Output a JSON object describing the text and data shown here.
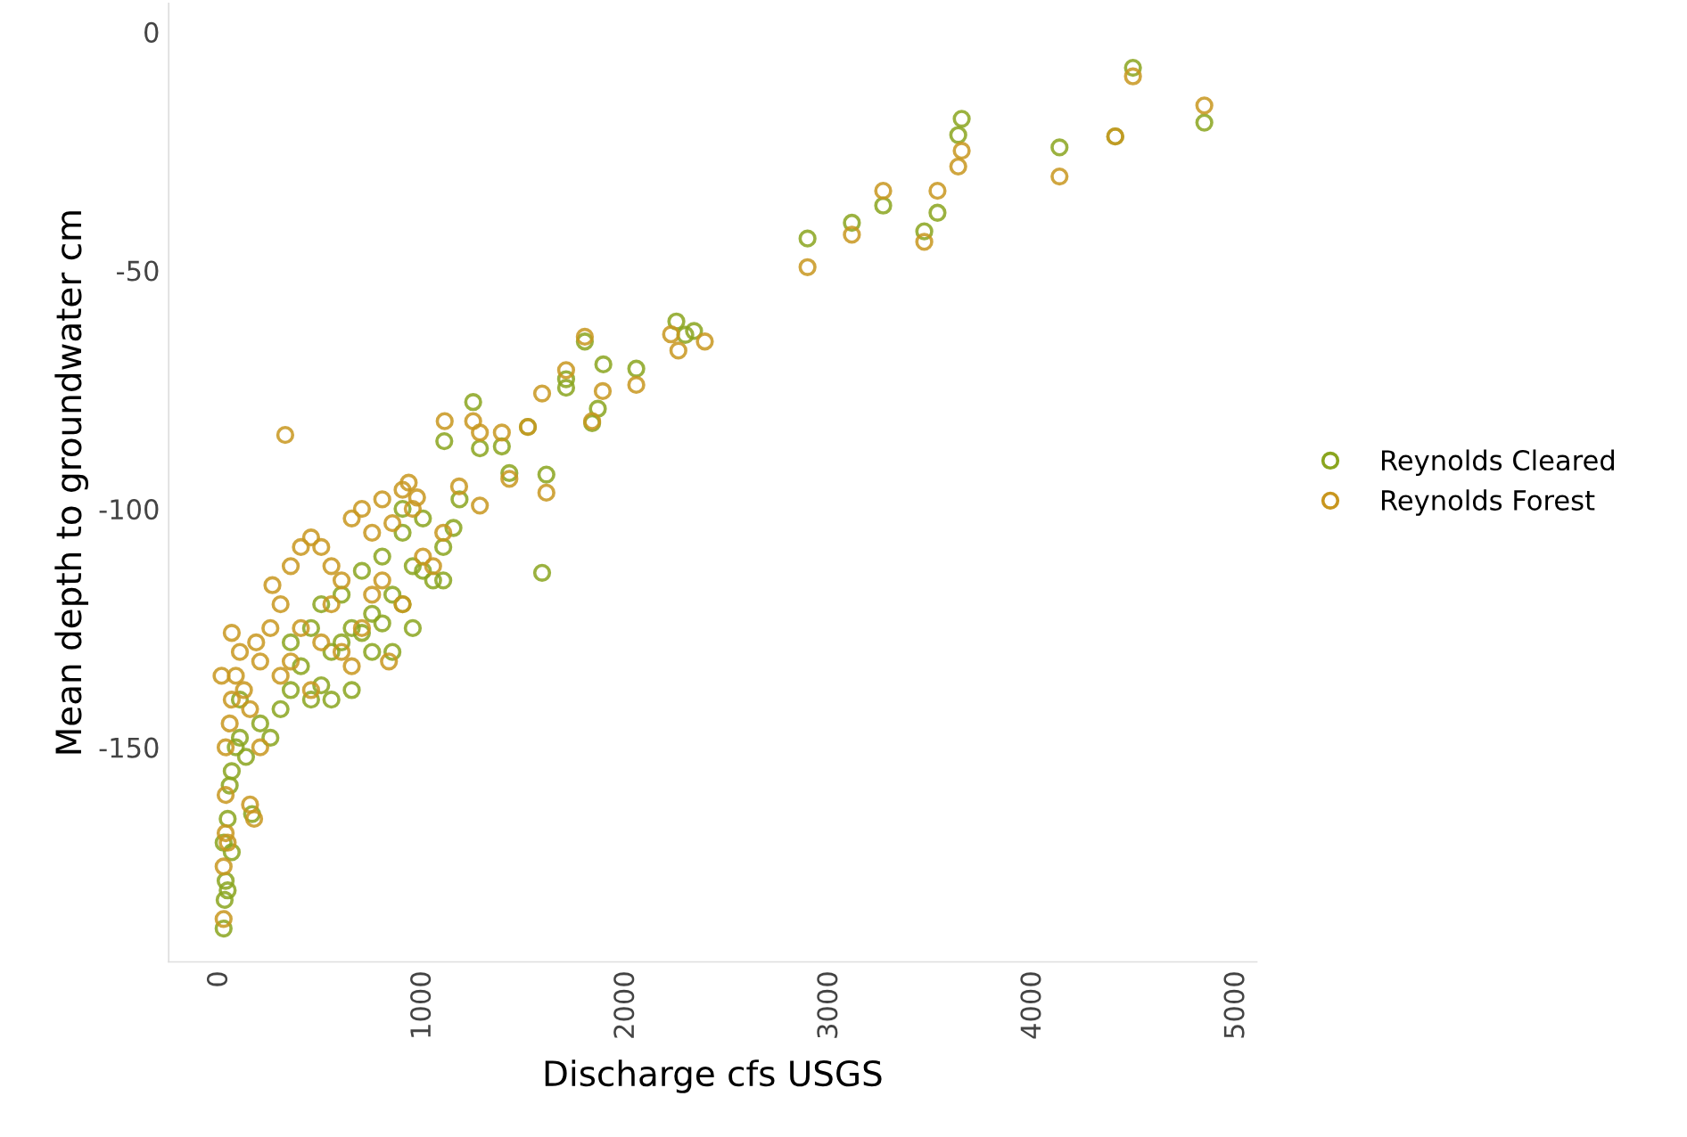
{
  "chart_data": {
    "type": "scatter",
    "xlabel": "Discharge cfs USGS",
    "ylabel": "Mean depth to groundwater cm",
    "xlim": [
      -250,
      5100
    ],
    "xticks": [
      0,
      1000,
      2000,
      3000,
      4000,
      5000
    ],
    "ylim": [
      -195,
      6
    ],
    "yticks": [
      0,
      -50,
      -100,
      -150
    ],
    "marker": "circle",
    "grid": false,
    "legend": "right",
    "series": [
      {
        "name": "Reynolds Cleared",
        "color": "#8aa51e",
        "x": [
          4491,
          4842,
          4404,
          4130,
          3649,
          3632,
          3263,
          3530,
          3465,
          3109,
          2891,
          2246,
          2333,
          2290,
          1796,
          1887,
          2049,
          1704,
          1704,
          1860,
          1832,
          1247,
          1105,
          1280,
          1388,
          1516,
          1425,
          1607,
          1586,
          20,
          25,
          30,
          20,
          40,
          50,
          60,
          80,
          100,
          130,
          160,
          250,
          300,
          350,
          400,
          450,
          500,
          550,
          600,
          650,
          700,
          750,
          800,
          850,
          900,
          950,
          1000,
          1050,
          1100,
          1150,
          500,
          600,
          700,
          800,
          900,
          450,
          350,
          550,
          650,
          750,
          850,
          950,
          1000,
          1100,
          200,
          100,
          60,
          40,
          900,
          1180
        ],
        "values": [
          -7.5,
          -19,
          -21.9,
          -24.2,
          -18.2,
          -21.6,
          -36.4,
          -37.9,
          -41.8,
          -40,
          -43.3,
          -60.7,
          -62.7,
          -63.5,
          -64.9,
          -69.7,
          -70.6,
          -72.8,
          -74.6,
          -79,
          -82,
          -77.6,
          -85.8,
          -87.3,
          -86.9,
          -82.8,
          -92.5,
          -92.8,
          -113.4,
          -188,
          -182,
          -178,
          -170,
          -165,
          -158,
          -155,
          -150,
          -148,
          -152,
          -164,
          -148,
          -142,
          -138,
          -133,
          -140,
          -137,
          -130,
          -128,
          -138,
          -126,
          -122,
          -124,
          -118,
          -120,
          -112,
          -113,
          -115,
          -108,
          -104,
          -120,
          -118,
          -113,
          -110,
          -105,
          -125,
          -128,
          -140,
          -125,
          -130,
          -130,
          -125,
          -102,
          -115,
          -145,
          -140,
          -172,
          -180,
          -100,
          -98
        ]
      },
      {
        "name": "Reynolds Forest",
        "color": "#c8961e",
        "x": [
          4491,
          4842,
          4404,
          4130,
          3649,
          3632,
          3263,
          3530,
          3465,
          3109,
          2891,
          2220,
          2386,
          2256,
          1796,
          2049,
          1704,
          1586,
          1884,
          1832,
          1107,
          1247,
          1280,
          1388,
          1516,
          323,
          1425,
          1607,
          1280,
          1178,
          930,
          971,
          20,
          30,
          40,
          30,
          50,
          60,
          80,
          100,
          120,
          150,
          180,
          10,
          60,
          200,
          250,
          300,
          350,
          400,
          450,
          500,
          550,
          600,
          650,
          700,
          750,
          800,
          850,
          900,
          950,
          1000,
          1050,
          1100,
          400,
          500,
          600,
          700,
          800,
          900,
          300,
          200,
          150,
          170,
          20,
          30,
          260,
          350,
          450,
          550,
          650,
          750,
          833
        ],
        "values": [
          -9.3,
          -15.4,
          -21.9,
          -30.3,
          -24.9,
          -28.2,
          -33.3,
          -33.3,
          -44,
          -42.5,
          -49.3,
          -63.4,
          -64.9,
          -66.8,
          -63.9,
          -74,
          -70.9,
          -75.8,
          -75.3,
          -81.6,
          -81.6,
          -81.6,
          -84,
          -84,
          -82.8,
          -84.5,
          -93.7,
          -96.6,
          -99.3,
          -95.3,
          -94.5,
          -97.6,
          -186,
          -160,
          -170,
          -150,
          -145,
          -140,
          -135,
          -130,
          -138,
          -142,
          -128,
          -135,
          -126,
          -132,
          -125,
          -120,
          -112,
          -108,
          -106,
          -108,
          -112,
          -115,
          -102,
          -100,
          -105,
          -98,
          -103,
          -96,
          -100,
          -110,
          -112,
          -105,
          -125,
          -128,
          -130,
          -125,
          -115,
          -120,
          -135,
          -150,
          -162,
          -165,
          -175,
          -168,
          -116,
          -132,
          -138,
          -120,
          -133,
          -118,
          -132
        ]
      }
    ]
  }
}
